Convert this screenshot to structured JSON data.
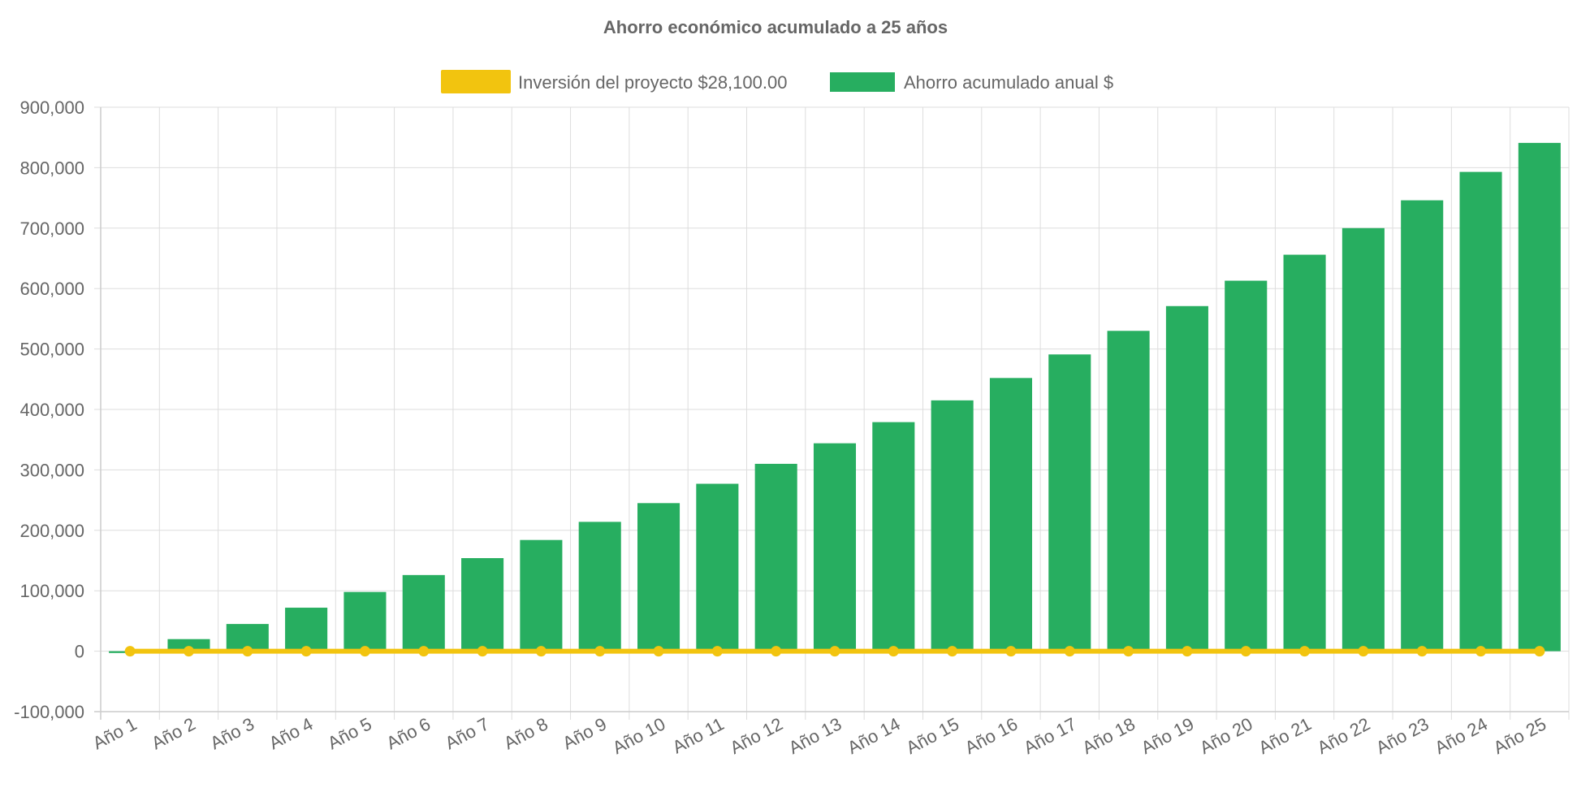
{
  "colors": {
    "investment": "#f2c40f",
    "savings": "#27ae60",
    "grid": "#dddddd",
    "text": "#666666"
  },
  "chart_data": {
    "type": "bar",
    "title": "Ahorro económico acumulado a 25 años",
    "legend_position": "top-center",
    "grid": true,
    "ylim": [
      -100000,
      900000
    ],
    "yticks": [
      900000,
      800000,
      700000,
      600000,
      500000,
      400000,
      300000,
      200000,
      100000,
      0,
      -100000
    ],
    "ytick_labels": [
      "900,000",
      "800,000",
      "700,000",
      "600,000",
      "500,000",
      "400,000",
      "300,000",
      "200,000",
      "100,000",
      "0",
      "-100,000"
    ],
    "categories": [
      "Año 1",
      "Año 2",
      "Año 3",
      "Año 4",
      "Año 5",
      "Año 6",
      "Año 7",
      "Año 8",
      "Año 9",
      "Año 10",
      "Año 11",
      "Año 12",
      "Año 13",
      "Año 14",
      "Año 15",
      "Año 16",
      "Año 17",
      "Año 18",
      "Año 19",
      "Año 20",
      "Año 21",
      "Año 22",
      "Año 23",
      "Año 24",
      "Año 25"
    ],
    "series": [
      {
        "name": "Inversión del proyecto $28,100.00",
        "type": "line",
        "color": "#f2c40f",
        "values": [
          0,
          0,
          0,
          0,
          0,
          0,
          0,
          0,
          0,
          0,
          0,
          0,
          0,
          0,
          0,
          0,
          0,
          0,
          0,
          0,
          0,
          0,
          0,
          0,
          0
        ]
      },
      {
        "name": "Ahorro acumulado anual $",
        "type": "bar",
        "color": "#27ae60",
        "values": [
          -3000,
          20000,
          45000,
          72000,
          98000,
          126000,
          154000,
          184000,
          214000,
          245000,
          277000,
          310000,
          344000,
          379000,
          415000,
          452000,
          491000,
          530000,
          571000,
          613000,
          656000,
          700000,
          746000,
          793000,
          841000
        ]
      }
    ]
  }
}
